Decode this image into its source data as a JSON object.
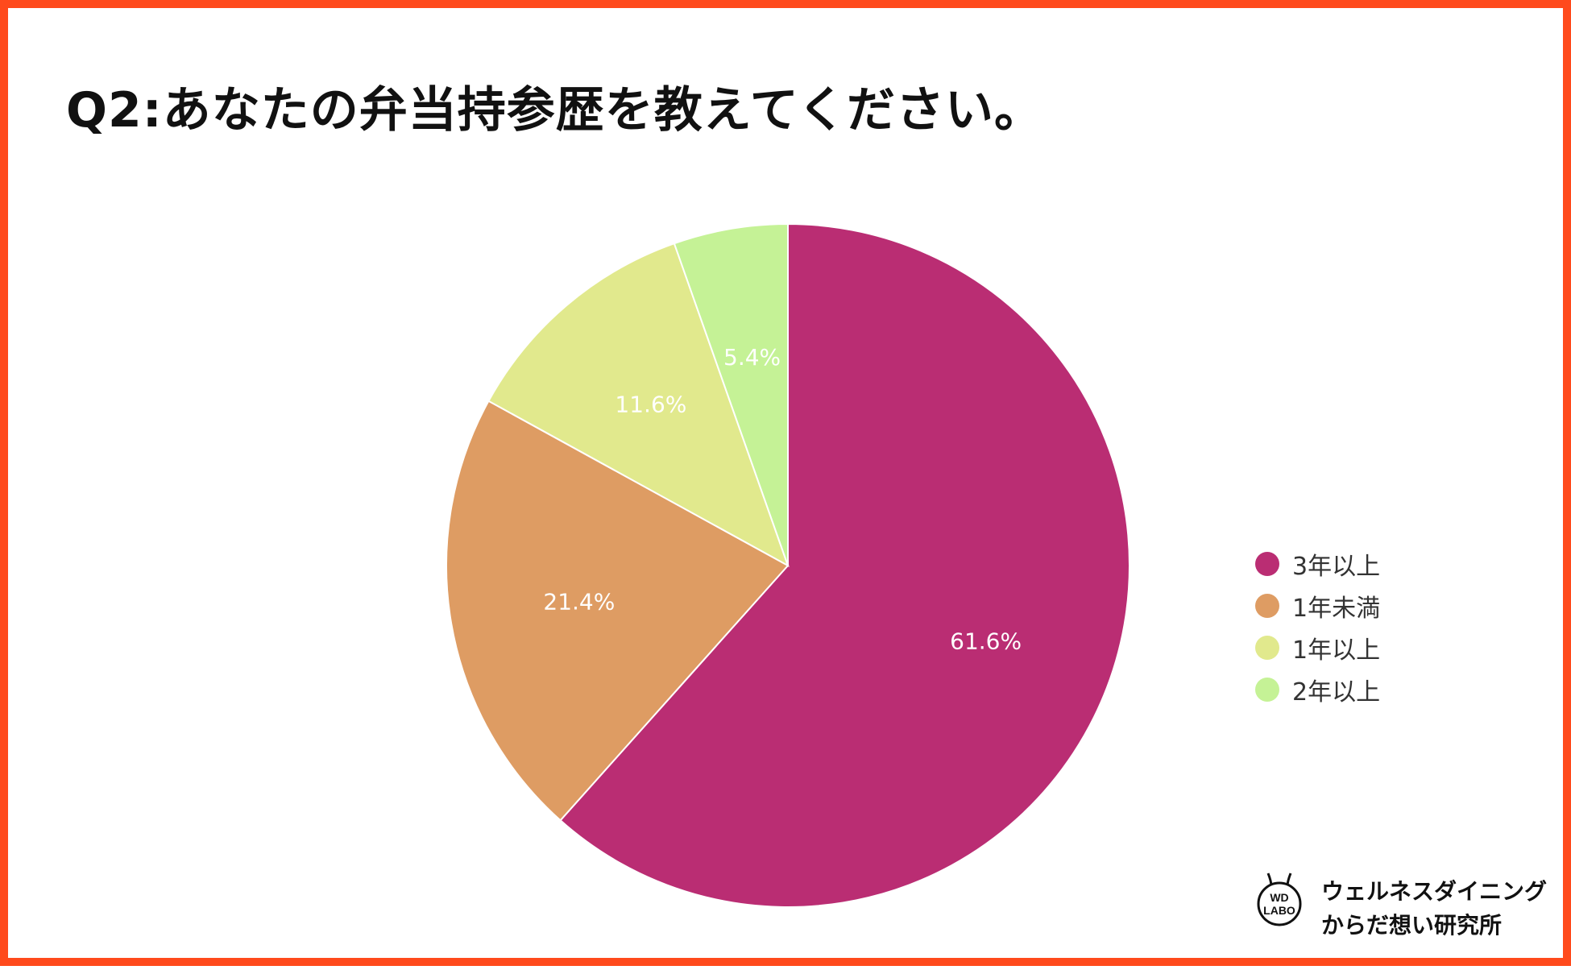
{
  "title": "Q2:あなたの弁当持参歴を教えてください。",
  "chart_data": {
    "type": "pie",
    "title": "Q2:あなたの弁当持参歴を教えてください。",
    "categories": [
      "3年以上",
      "1年未満",
      "1年以上",
      "2年以上"
    ],
    "values": [
      61.6,
      21.4,
      11.6,
      5.4
    ],
    "unit": "%",
    "data_labels": [
      "61.6%",
      "21.4%",
      "11.6%",
      "5.4%"
    ],
    "colors": [
      "#ba2d73",
      "#de9c63",
      "#e1e98d",
      "#c5f296"
    ],
    "start_angle_deg": 0,
    "direction": "clockwise",
    "legend_position": "right"
  },
  "logo": {
    "badge_line1": "WD",
    "badge_line2": "LABO",
    "line1": "ウェルネスダイニング",
    "line2": "からだ想い研究所"
  },
  "colors": {
    "border": "#ff4a1c",
    "title": "#111111",
    "data_label": "#ffffff"
  }
}
